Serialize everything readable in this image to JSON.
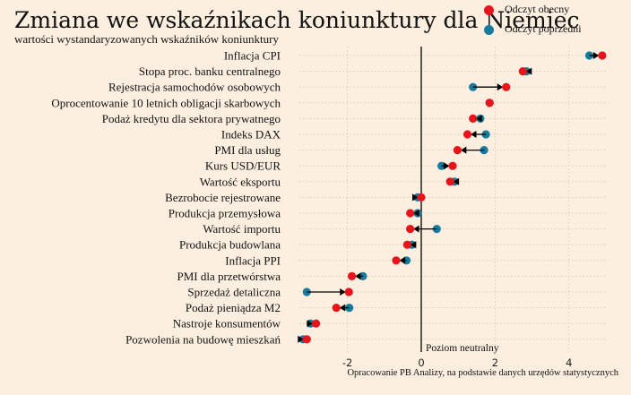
{
  "colors": {
    "current": "#e8141c",
    "previous": "#167b9c",
    "background": "#fcefe0",
    "grid": "#cfc4b4"
  },
  "chart_data": {
    "type": "dot-arrow",
    "title": "Zmiana we wskaźnikach koniunktury dla Niemiec",
    "subtitle": "wartości wystandaryzowanych wskaźników koniunktury",
    "legend": {
      "current": "Odczyt obecny",
      "previous": "Odczyt poprzedni",
      "position": "top-right"
    },
    "xlim": [
      -3.3,
      5.0
    ],
    "xticks": [
      -2,
      0,
      2,
      4
    ],
    "grid": true,
    "annotation": "Poziom neutralny",
    "categories": [
      "Inflacja CPI",
      "Stopa proc. banku centralnego",
      "Rejestracja samochodów osobowych",
      "Oprocentowanie 10 letnich obligacji skarbowych",
      "Podaż kredytu dla sektora prywatnego",
      "Indeks DAX",
      "PMI dla usług",
      "Kurs USD/EUR",
      "Wartość eksportu",
      "Bezrobocie rejestrowane",
      "Produkcja przemysłowa",
      "Wartość importu",
      "Produkcja budowlana",
      "Inflacja PPI",
      "PMI dla przetwórstwa",
      "Sprzedaż detaliczna",
      "Podaż pieniądza M2",
      "Nastroje konsumentów",
      "Pozwolenia na budowę mieszkań"
    ],
    "series": [
      {
        "name": "Odczyt obecny",
        "values": [
          4.9,
          2.75,
          2.3,
          1.85,
          1.4,
          1.25,
          0.98,
          0.85,
          0.78,
          0.0,
          -0.3,
          -0.3,
          -0.38,
          -0.68,
          -1.88,
          -1.96,
          -2.3,
          -2.85,
          -3.1
        ]
      },
      {
        "name": "Odczyt poprzedni",
        "values": [
          4.55,
          2.85,
          1.4,
          1.85,
          1.6,
          1.75,
          1.7,
          0.55,
          0.9,
          -0.1,
          -0.1,
          0.42,
          -0.25,
          -0.4,
          -1.58,
          -3.1,
          -1.95,
          -3.0,
          -3.2
        ]
      }
    ]
  },
  "footer": "Opracowanie PB Analizy, na podstawie danych urzędów statystycznych"
}
